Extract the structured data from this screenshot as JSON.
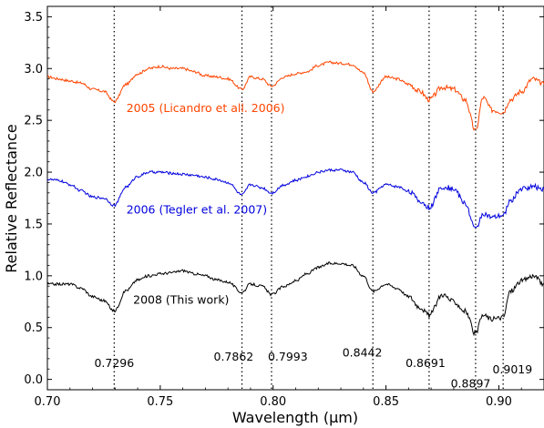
{
  "chart_data": {
    "type": "line",
    "title": "",
    "xlabel": "Wavelength (μm)",
    "ylabel": "Relative Reflectance",
    "xlim": [
      0.7,
      0.92
    ],
    "ylim": [
      -0.1,
      3.6
    ],
    "xticks": [
      "0.70",
      "0.75",
      "0.80",
      "0.85",
      "0.90"
    ],
    "xtick_values": [
      0.7,
      0.75,
      0.8,
      0.85,
      0.9
    ],
    "yticks": [
      "0.0",
      "0.5",
      "1.0",
      "1.5",
      "2.0",
      "2.5",
      "3.0",
      "3.5"
    ],
    "ytick_values": [
      0.0,
      0.5,
      1.0,
      1.5,
      2.0,
      2.5,
      3.0,
      3.5
    ],
    "grid": false,
    "series": [
      {
        "name": "2005 (Licandro et all. 2006)",
        "color": "#ff4500",
        "x": [
          0.7,
          0.705,
          0.71,
          0.715,
          0.72,
          0.725,
          0.7296,
          0.735,
          0.74,
          0.745,
          0.75,
          0.755,
          0.76,
          0.765,
          0.77,
          0.775,
          0.78,
          0.7862,
          0.79,
          0.795,
          0.7993,
          0.805,
          0.81,
          0.815,
          0.82,
          0.825,
          0.83,
          0.835,
          0.84,
          0.8442,
          0.85,
          0.855,
          0.86,
          0.865,
          0.8691,
          0.875,
          0.88,
          0.885,
          0.8897,
          0.893,
          0.897,
          0.9019,
          0.905,
          0.91,
          0.915,
          0.92
        ],
        "y": [
          2.92,
          2.9,
          2.88,
          2.86,
          2.8,
          2.78,
          2.68,
          2.85,
          2.95,
          3.0,
          3.02,
          3.0,
          3.0,
          2.97,
          2.93,
          2.92,
          2.9,
          2.8,
          2.92,
          2.9,
          2.83,
          2.92,
          2.95,
          2.97,
          3.03,
          3.06,
          3.05,
          3.04,
          2.96,
          2.78,
          2.92,
          2.9,
          2.85,
          2.78,
          2.7,
          2.82,
          2.8,
          2.7,
          2.4,
          2.72,
          2.6,
          2.58,
          2.7,
          2.78,
          2.9,
          2.85
        ]
      },
      {
        "name": "2006 (Tegler et al. 2007)",
        "color": "#0000dd",
        "x": [
          0.7,
          0.705,
          0.71,
          0.715,
          0.72,
          0.725,
          0.7296,
          0.735,
          0.74,
          0.745,
          0.75,
          0.755,
          0.76,
          0.765,
          0.77,
          0.775,
          0.78,
          0.7862,
          0.79,
          0.795,
          0.7993,
          0.805,
          0.81,
          0.815,
          0.82,
          0.825,
          0.83,
          0.835,
          0.84,
          0.8442,
          0.85,
          0.855,
          0.86,
          0.865,
          0.8691,
          0.875,
          0.88,
          0.885,
          0.8897,
          0.893,
          0.897,
          0.9019,
          0.905,
          0.91,
          0.915,
          0.92
        ],
        "y": [
          1.93,
          1.92,
          1.88,
          1.82,
          1.76,
          1.75,
          1.68,
          1.86,
          1.96,
          2.0,
          2.0,
          1.99,
          1.98,
          1.97,
          1.95,
          1.93,
          1.9,
          1.78,
          1.88,
          1.85,
          1.8,
          1.88,
          1.92,
          1.96,
          2.0,
          2.02,
          2.02,
          2.0,
          1.9,
          1.8,
          1.88,
          1.86,
          1.82,
          1.72,
          1.66,
          1.86,
          1.84,
          1.7,
          1.45,
          1.6,
          1.56,
          1.58,
          1.72,
          1.84,
          1.86,
          1.84
        ]
      },
      {
        "name": "2008 (This work)",
        "color": "#000000",
        "x": [
          0.7,
          0.705,
          0.71,
          0.715,
          0.72,
          0.725,
          0.7296,
          0.735,
          0.74,
          0.745,
          0.75,
          0.755,
          0.76,
          0.765,
          0.77,
          0.775,
          0.78,
          0.7862,
          0.79,
          0.795,
          0.7993,
          0.805,
          0.81,
          0.815,
          0.82,
          0.825,
          0.83,
          0.835,
          0.84,
          0.8442,
          0.85,
          0.855,
          0.86,
          0.865,
          0.8691,
          0.875,
          0.88,
          0.885,
          0.8897,
          0.893,
          0.897,
          0.9019,
          0.905,
          0.91,
          0.915,
          0.92
        ],
        "y": [
          0.92,
          0.92,
          0.92,
          0.88,
          0.8,
          0.76,
          0.66,
          0.86,
          0.96,
          1.0,
          1.02,
          1.03,
          1.05,
          1.02,
          1.0,
          0.96,
          0.94,
          0.84,
          0.92,
          0.9,
          0.82,
          0.9,
          0.95,
          1.02,
          1.08,
          1.12,
          1.12,
          1.1,
          1.0,
          0.85,
          0.92,
          0.88,
          0.8,
          0.7,
          0.62,
          0.82,
          0.75,
          0.66,
          0.44,
          0.62,
          0.58,
          0.6,
          0.85,
          0.95,
          1.0,
          0.92
        ]
      }
    ],
    "series_labels": [
      {
        "text": "2005 (Licandro et all. 2006)",
        "x": 0.735,
        "y": 2.58,
        "color": "#ff4500"
      },
      {
        "text": "2006 (Tegler et al. 2007)",
        "x": 0.735,
        "y": 1.6,
        "color": "#0000dd"
      },
      {
        "text": "2008 (This work)",
        "x": 0.738,
        "y": 0.73,
        "color": "#000000"
      }
    ],
    "reference_lines": [
      {
        "x": 0.7296,
        "label": "0.7296",
        "label_x": 0.7296,
        "label_y": 0.12
      },
      {
        "x": 0.7862,
        "label": "0.7862",
        "label_x": 0.7825,
        "label_y": 0.18
      },
      {
        "x": 0.7993,
        "label": "0.7993",
        "label_x": 0.8065,
        "label_y": 0.18
      },
      {
        "x": 0.8442,
        "label": "0.8442",
        "label_x": 0.8395,
        "label_y": 0.22
      },
      {
        "x": 0.8691,
        "label": "0.8691",
        "label_x": 0.8675,
        "label_y": 0.12
      },
      {
        "x": 0.8897,
        "label": "0.8897",
        "label_x": 0.8875,
        "label_y": -0.08
      },
      {
        "x": 0.9019,
        "label": "0.9019",
        "label_x": 0.906,
        "label_y": 0.06
      }
    ]
  }
}
